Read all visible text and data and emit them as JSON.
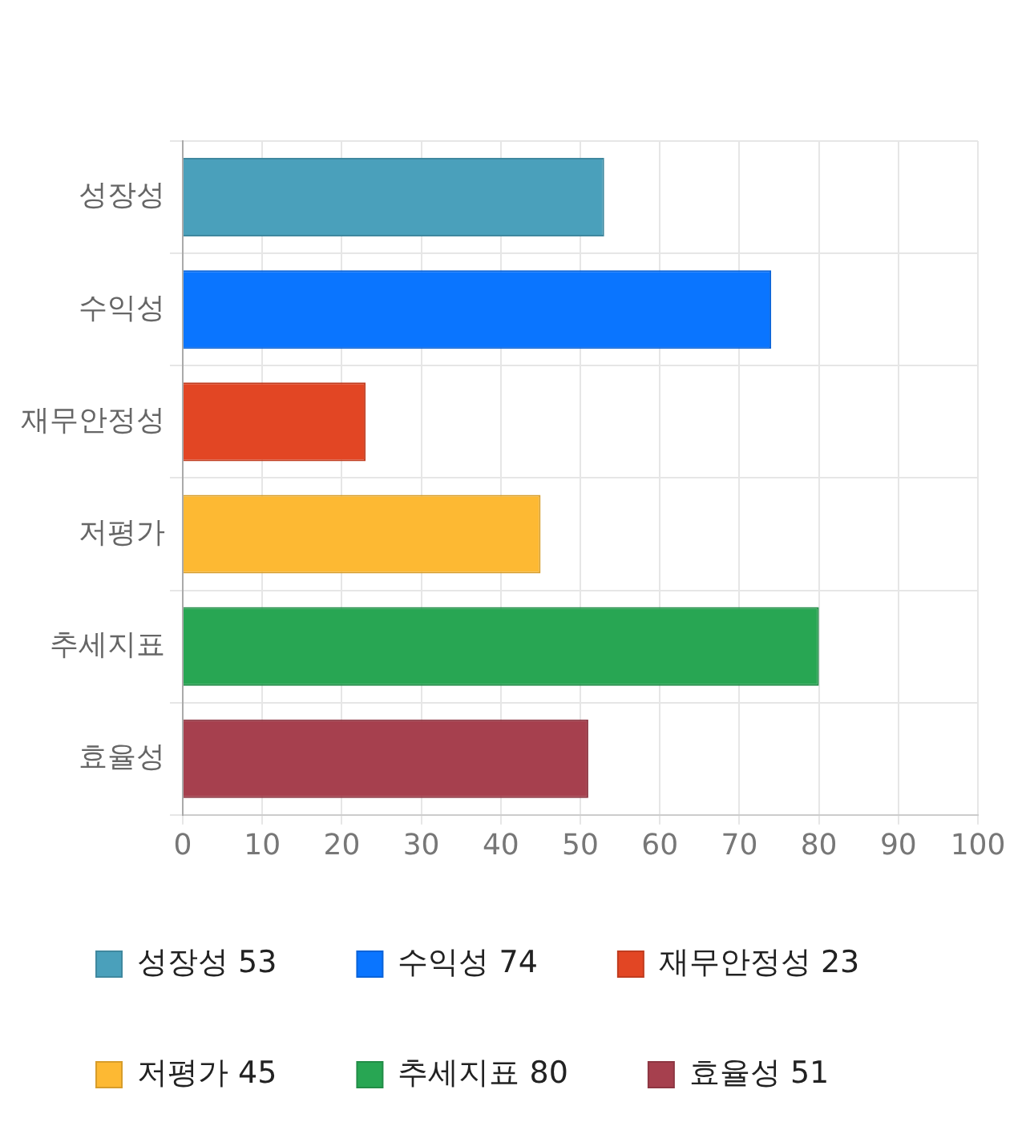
{
  "chart_data": {
    "type": "bar",
    "orientation": "horizontal",
    "stacked": true,
    "categories": [
      "성장성",
      "수익성",
      "재무안정성",
      "저평가",
      "추세지표",
      "효율성"
    ],
    "series": [
      {
        "name": "성장성 53",
        "color": "#4aa0bb",
        "values": [
          53,
          null,
          null,
          null,
          null,
          null
        ]
      },
      {
        "name": "수익성 74",
        "color": "#0a75ff",
        "values": [
          null,
          74,
          null,
          null,
          null,
          null
        ]
      },
      {
        "name": "재무안정성 23",
        "color": "#e24624",
        "values": [
          null,
          null,
          23,
          null,
          null,
          null
        ]
      },
      {
        "name": "저평가 45",
        "color": "#fdb933",
        "values": [
          null,
          null,
          null,
          45,
          null,
          null
        ]
      },
      {
        "name": "추세지표 80",
        "color": "#28a653",
        "values": [
          null,
          null,
          null,
          null,
          80,
          null
        ]
      },
      {
        "name": "효율성 51",
        "color": "#a6404e",
        "values": [
          null,
          null,
          null,
          null,
          null,
          51
        ]
      }
    ],
    "xlim": [
      0,
      100
    ],
    "xticks": [
      0,
      10,
      20,
      30,
      40,
      50,
      60,
      70,
      80,
      90,
      100
    ],
    "grid": true,
    "legend": "bottom"
  }
}
